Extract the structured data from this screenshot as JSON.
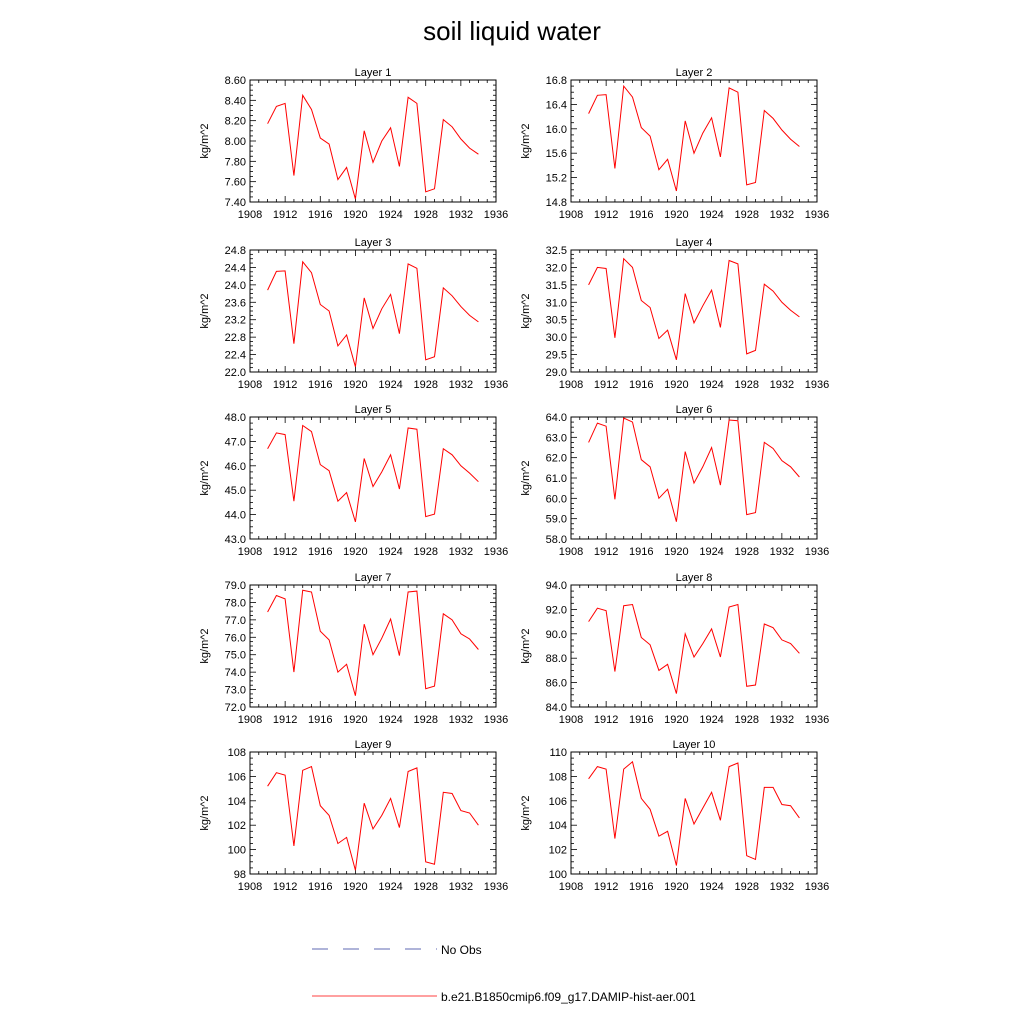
{
  "title": "soil liquid water",
  "legend": {
    "no_obs_label": "No Obs",
    "model_label": "b.e21.B1850cmip6.f09_g17.DAMIP-hist-aer.001",
    "colors": {
      "model": "#ff0000",
      "no_obs": "#2b3a9a"
    }
  },
  "chart_data": [
    {
      "type": "line",
      "title": "Layer 1",
      "ylabel": "kg/m^2",
      "xlim": [
        1908,
        1936
      ],
      "xticks": [
        1908,
        1912,
        1916,
        1920,
        1924,
        1928,
        1932,
        1936
      ],
      "ylim": [
        7.4,
        8.6
      ],
      "yticks": [
        7.4,
        7.6,
        7.8,
        8.0,
        8.2,
        8.4,
        8.6
      ],
      "ytick_labels": [
        "7.40",
        "7.60",
        "7.80",
        "8.00",
        "8.20",
        "8.40",
        "8.60"
      ],
      "series": [
        {
          "name": "b.e21.B1850cmip6.f09_g17.DAMIP-hist-aer.001",
          "color": "#ff0000",
          "x": [
            1910,
            1911,
            1912,
            1913,
            1914,
            1915,
            1916,
            1917,
            1918,
            1919,
            1920,
            1921,
            1922,
            1923,
            1924,
            1925,
            1926,
            1927,
            1928,
            1929,
            1930,
            1931,
            1932,
            1933,
            1934
          ],
          "y": [
            8.17,
            8.34,
            8.37,
            7.66,
            8.45,
            8.31,
            8.03,
            7.97,
            7.62,
            7.74,
            7.43,
            8.1,
            7.79,
            8.0,
            8.13,
            7.75,
            8.43,
            8.37,
            7.5,
            7.53,
            8.21,
            8.14,
            8.02,
            7.93,
            7.87
          ]
        }
      ]
    },
    {
      "type": "line",
      "title": "Layer 2",
      "ylabel": "kg/m^2",
      "xlim": [
        1908,
        1936
      ],
      "xticks": [
        1908,
        1912,
        1916,
        1920,
        1924,
        1928,
        1932,
        1936
      ],
      "ylim": [
        14.8,
        16.8
      ],
      "yticks": [
        14.8,
        15.2,
        15.6,
        16.0,
        16.4,
        16.8
      ],
      "ytick_labels": [
        "14.8",
        "15.2",
        "15.6",
        "16.0",
        "16.4",
        "16.8"
      ],
      "series": [
        {
          "name": "b.e21.B1850cmip6.f09_g17.DAMIP-hist-aer.001",
          "color": "#ff0000",
          "x": [
            1910,
            1911,
            1912,
            1913,
            1914,
            1915,
            1916,
            1917,
            1918,
            1919,
            1920,
            1921,
            1922,
            1923,
            1924,
            1925,
            1926,
            1927,
            1928,
            1929,
            1930,
            1931,
            1932,
            1933,
            1934
          ],
          "y": [
            16.25,
            16.55,
            16.56,
            15.35,
            16.7,
            16.52,
            16.02,
            15.88,
            15.33,
            15.5,
            14.98,
            16.13,
            15.6,
            15.93,
            16.18,
            15.54,
            16.67,
            16.6,
            15.08,
            15.12,
            16.3,
            16.17,
            15.98,
            15.83,
            15.71
          ]
        }
      ]
    },
    {
      "type": "line",
      "title": "Layer 3",
      "ylabel": "kg/m^2",
      "xlim": [
        1908,
        1936
      ],
      "xticks": [
        1908,
        1912,
        1916,
        1920,
        1924,
        1928,
        1932,
        1936
      ],
      "ylim": [
        22.0,
        24.8
      ],
      "yticks": [
        22.0,
        22.4,
        22.8,
        23.2,
        23.6,
        24.0,
        24.4,
        24.8
      ],
      "ytick_labels": [
        "22.0",
        "22.4",
        "22.8",
        "23.2",
        "23.6",
        "24.0",
        "24.4",
        "24.8"
      ],
      "series": [
        {
          "name": "b.e21.B1850cmip6.f09_g17.DAMIP-hist-aer.001",
          "color": "#ff0000",
          "x": [
            1910,
            1911,
            1912,
            1913,
            1914,
            1915,
            1916,
            1917,
            1918,
            1919,
            1920,
            1921,
            1922,
            1923,
            1924,
            1925,
            1926,
            1927,
            1928,
            1929,
            1930,
            1931,
            1932,
            1933,
            1934
          ],
          "y": [
            23.88,
            24.31,
            24.32,
            22.65,
            24.53,
            24.28,
            23.55,
            23.4,
            22.6,
            22.85,
            22.12,
            23.7,
            23.0,
            23.45,
            23.78,
            22.88,
            24.48,
            24.38,
            22.28,
            22.35,
            23.93,
            23.75,
            23.5,
            23.3,
            23.15
          ]
        }
      ]
    },
    {
      "type": "line",
      "title": "Layer 4",
      "ylabel": "kg/m^2",
      "xlim": [
        1908,
        1936
      ],
      "xticks": [
        1908,
        1912,
        1916,
        1920,
        1924,
        1928,
        1932,
        1936
      ],
      "ylim": [
        29.0,
        32.5
      ],
      "yticks": [
        29.0,
        29.5,
        30.0,
        30.5,
        31.0,
        31.5,
        32.0,
        32.5
      ],
      "ytick_labels": [
        "29.0",
        "29.5",
        "30.0",
        "30.5",
        "31.0",
        "31.5",
        "32.0",
        "32.5"
      ],
      "series": [
        {
          "name": "b.e21.B1850cmip6.f09_g17.DAMIP-hist-aer.001",
          "color": "#ff0000",
          "x": [
            1910,
            1911,
            1912,
            1913,
            1914,
            1915,
            1916,
            1917,
            1918,
            1919,
            1920,
            1921,
            1922,
            1923,
            1924,
            1925,
            1926,
            1927,
            1928,
            1929,
            1930,
            1931,
            1932,
            1933,
            1934
          ],
          "y": [
            31.5,
            32.0,
            31.97,
            29.98,
            32.25,
            32.0,
            31.05,
            30.85,
            29.96,
            30.2,
            29.35,
            31.25,
            30.41,
            30.9,
            31.35,
            30.28,
            32.2,
            32.1,
            29.52,
            29.62,
            31.52,
            31.32,
            31.0,
            30.77,
            30.58
          ]
        }
      ]
    },
    {
      "type": "line",
      "title": "Layer 5",
      "ylabel": "kg/m^2",
      "xlim": [
        1908,
        1936
      ],
      "xticks": [
        1908,
        1912,
        1916,
        1920,
        1924,
        1928,
        1932,
        1936
      ],
      "ylim": [
        43.0,
        48.0
      ],
      "yticks": [
        43.0,
        44.0,
        45.0,
        46.0,
        47.0,
        48.0
      ],
      "ytick_labels": [
        "43.0",
        "44.0",
        "45.0",
        "46.0",
        "47.0",
        "48.0"
      ],
      "series": [
        {
          "name": "b.e21.B1850cmip6.f09_g17.DAMIP-hist-aer.001",
          "color": "#ff0000",
          "x": [
            1910,
            1911,
            1912,
            1913,
            1914,
            1915,
            1916,
            1917,
            1918,
            1919,
            1920,
            1921,
            1922,
            1923,
            1924,
            1925,
            1926,
            1927,
            1928,
            1929,
            1930,
            1931,
            1932,
            1933,
            1934
          ],
          "y": [
            46.7,
            47.35,
            47.28,
            44.55,
            47.65,
            47.4,
            46.05,
            45.8,
            44.55,
            44.9,
            43.7,
            46.3,
            45.15,
            45.75,
            46.45,
            45.05,
            47.55,
            47.5,
            43.92,
            44.02,
            46.7,
            46.45,
            46.0,
            45.7,
            45.35
          ]
        }
      ]
    },
    {
      "type": "line",
      "title": "Layer 6",
      "ylabel": "kg/m^2",
      "xlim": [
        1908,
        1936
      ],
      "xticks": [
        1908,
        1912,
        1916,
        1920,
        1924,
        1928,
        1932,
        1936
      ],
      "ylim": [
        58.0,
        64.0
      ],
      "yticks": [
        58.0,
        59.0,
        60.0,
        61.0,
        62.0,
        63.0,
        64.0
      ],
      "ytick_labels": [
        "58.0",
        "59.0",
        "60.0",
        "61.0",
        "62.0",
        "63.0",
        "64.0"
      ],
      "series": [
        {
          "name": "b.e21.B1850cmip6.f09_g17.DAMIP-hist-aer.001",
          "color": "#ff0000",
          "x": [
            1910,
            1911,
            1912,
            1913,
            1914,
            1915,
            1916,
            1917,
            1918,
            1919,
            1920,
            1921,
            1922,
            1923,
            1924,
            1925,
            1926,
            1927,
            1928,
            1929,
            1930,
            1931,
            1932,
            1933,
            1934
          ],
          "y": [
            62.75,
            63.7,
            63.55,
            59.95,
            63.95,
            63.75,
            61.9,
            61.55,
            60.0,
            60.45,
            58.85,
            62.3,
            60.75,
            61.55,
            62.5,
            60.65,
            63.85,
            63.82,
            59.2,
            59.3,
            62.75,
            62.45,
            61.85,
            61.55,
            61.05
          ]
        }
      ]
    },
    {
      "type": "line",
      "title": "Layer 7",
      "ylabel": "kg/m^2",
      "xlim": [
        1908,
        1936
      ],
      "xticks": [
        1908,
        1912,
        1916,
        1920,
        1924,
        1928,
        1932,
        1936
      ],
      "ylim": [
        72.0,
        79.0
      ],
      "yticks": [
        72.0,
        73.0,
        74.0,
        75.0,
        76.0,
        77.0,
        78.0,
        79.0
      ],
      "ytick_labels": [
        "72.0",
        "73.0",
        "74.0",
        "75.0",
        "76.0",
        "77.0",
        "78.0",
        "79.0"
      ],
      "series": [
        {
          "name": "b.e21.B1850cmip6.f09_g17.DAMIP-hist-aer.001",
          "color": "#ff0000",
          "x": [
            1910,
            1911,
            1912,
            1913,
            1914,
            1915,
            1916,
            1917,
            1918,
            1919,
            1920,
            1921,
            1922,
            1923,
            1924,
            1925,
            1926,
            1927,
            1928,
            1929,
            1930,
            1931,
            1932,
            1933,
            1934
          ],
          "y": [
            77.45,
            78.4,
            78.2,
            74.0,
            78.7,
            78.6,
            76.35,
            75.85,
            74.0,
            74.45,
            72.65,
            76.75,
            75.0,
            75.95,
            77.05,
            74.95,
            78.6,
            78.65,
            73.05,
            73.2,
            77.35,
            77.0,
            76.2,
            75.9,
            75.3
          ]
        }
      ]
    },
    {
      "type": "line",
      "title": "Layer 8",
      "ylabel": "kg/m^2",
      "xlim": [
        1908,
        1936
      ],
      "xticks": [
        1908,
        1912,
        1916,
        1920,
        1924,
        1928,
        1932,
        1936
      ],
      "ylim": [
        84.0,
        94.0
      ],
      "yticks": [
        84.0,
        86.0,
        88.0,
        90.0,
        92.0,
        94.0
      ],
      "ytick_labels": [
        "84.0",
        "86.0",
        "88.0",
        "90.0",
        "92.0",
        "94.0"
      ],
      "series": [
        {
          "name": "b.e21.B1850cmip6.f09_g17.DAMIP-hist-aer.001",
          "color": "#ff0000",
          "x": [
            1910,
            1911,
            1912,
            1913,
            1914,
            1915,
            1916,
            1917,
            1918,
            1919,
            1920,
            1921,
            1922,
            1923,
            1924,
            1925,
            1926,
            1927,
            1928,
            1929,
            1930,
            1931,
            1932,
            1933,
            1934
          ],
          "y": [
            91.0,
            92.1,
            91.9,
            86.9,
            92.3,
            92.4,
            89.7,
            89.1,
            87.0,
            87.5,
            85.1,
            90.0,
            88.1,
            89.2,
            90.4,
            88.1,
            92.2,
            92.4,
            85.7,
            85.8,
            90.8,
            90.5,
            89.5,
            89.2,
            88.4
          ]
        }
      ]
    },
    {
      "type": "line",
      "title": "Layer 9",
      "ylabel": "kg/m^2",
      "xlim": [
        1908,
        1936
      ],
      "xticks": [
        1908,
        1912,
        1916,
        1920,
        1924,
        1928,
        1932,
        1936
      ],
      "ylim": [
        98,
        108
      ],
      "yticks": [
        98,
        100,
        102,
        104,
        106,
        108
      ],
      "ytick_labels": [
        "98",
        "100",
        "102",
        "104",
        "106",
        "108"
      ],
      "series": [
        {
          "name": "b.e21.B1850cmip6.f09_g17.DAMIP-hist-aer.001",
          "color": "#ff0000",
          "x": [
            1910,
            1911,
            1912,
            1913,
            1914,
            1915,
            1916,
            1917,
            1918,
            1919,
            1920,
            1921,
            1922,
            1923,
            1924,
            1925,
            1926,
            1927,
            1928,
            1929,
            1930,
            1931,
            1932,
            1933,
            1934
          ],
          "y": [
            105.2,
            106.3,
            106.1,
            100.3,
            106.5,
            106.8,
            103.6,
            102.8,
            100.5,
            101.0,
            98.3,
            103.8,
            101.7,
            102.8,
            104.2,
            101.8,
            106.4,
            106.7,
            99.0,
            98.8,
            104.7,
            104.6,
            103.2,
            103.0,
            102.0
          ]
        }
      ]
    },
    {
      "type": "line",
      "title": "Layer 10",
      "ylabel": "kg/m^2",
      "xlim": [
        1908,
        1936
      ],
      "xticks": [
        1908,
        1912,
        1916,
        1920,
        1924,
        1928,
        1932,
        1936
      ],
      "ylim": [
        100,
        110
      ],
      "yticks": [
        100,
        102,
        104,
        106,
        108,
        110
      ],
      "ytick_labels": [
        "100",
        "102",
        "104",
        "106",
        "108",
        "110"
      ],
      "series": [
        {
          "name": "b.e21.B1850cmip6.f09_g17.DAMIP-hist-aer.001",
          "color": "#ff0000",
          "x": [
            1910,
            1911,
            1912,
            1913,
            1914,
            1915,
            1916,
            1917,
            1918,
            1919,
            1920,
            1921,
            1922,
            1923,
            1924,
            1925,
            1926,
            1927,
            1928,
            1929,
            1930,
            1931,
            1932,
            1933,
            1934
          ],
          "y": [
            107.8,
            108.8,
            108.6,
            102.9,
            108.6,
            109.2,
            106.2,
            105.3,
            103.1,
            103.5,
            100.7,
            106.2,
            104.1,
            105.4,
            106.7,
            104.4,
            108.8,
            109.1,
            101.5,
            101.2,
            107.1,
            107.1,
            105.7,
            105.6,
            104.6
          ]
        }
      ]
    }
  ]
}
